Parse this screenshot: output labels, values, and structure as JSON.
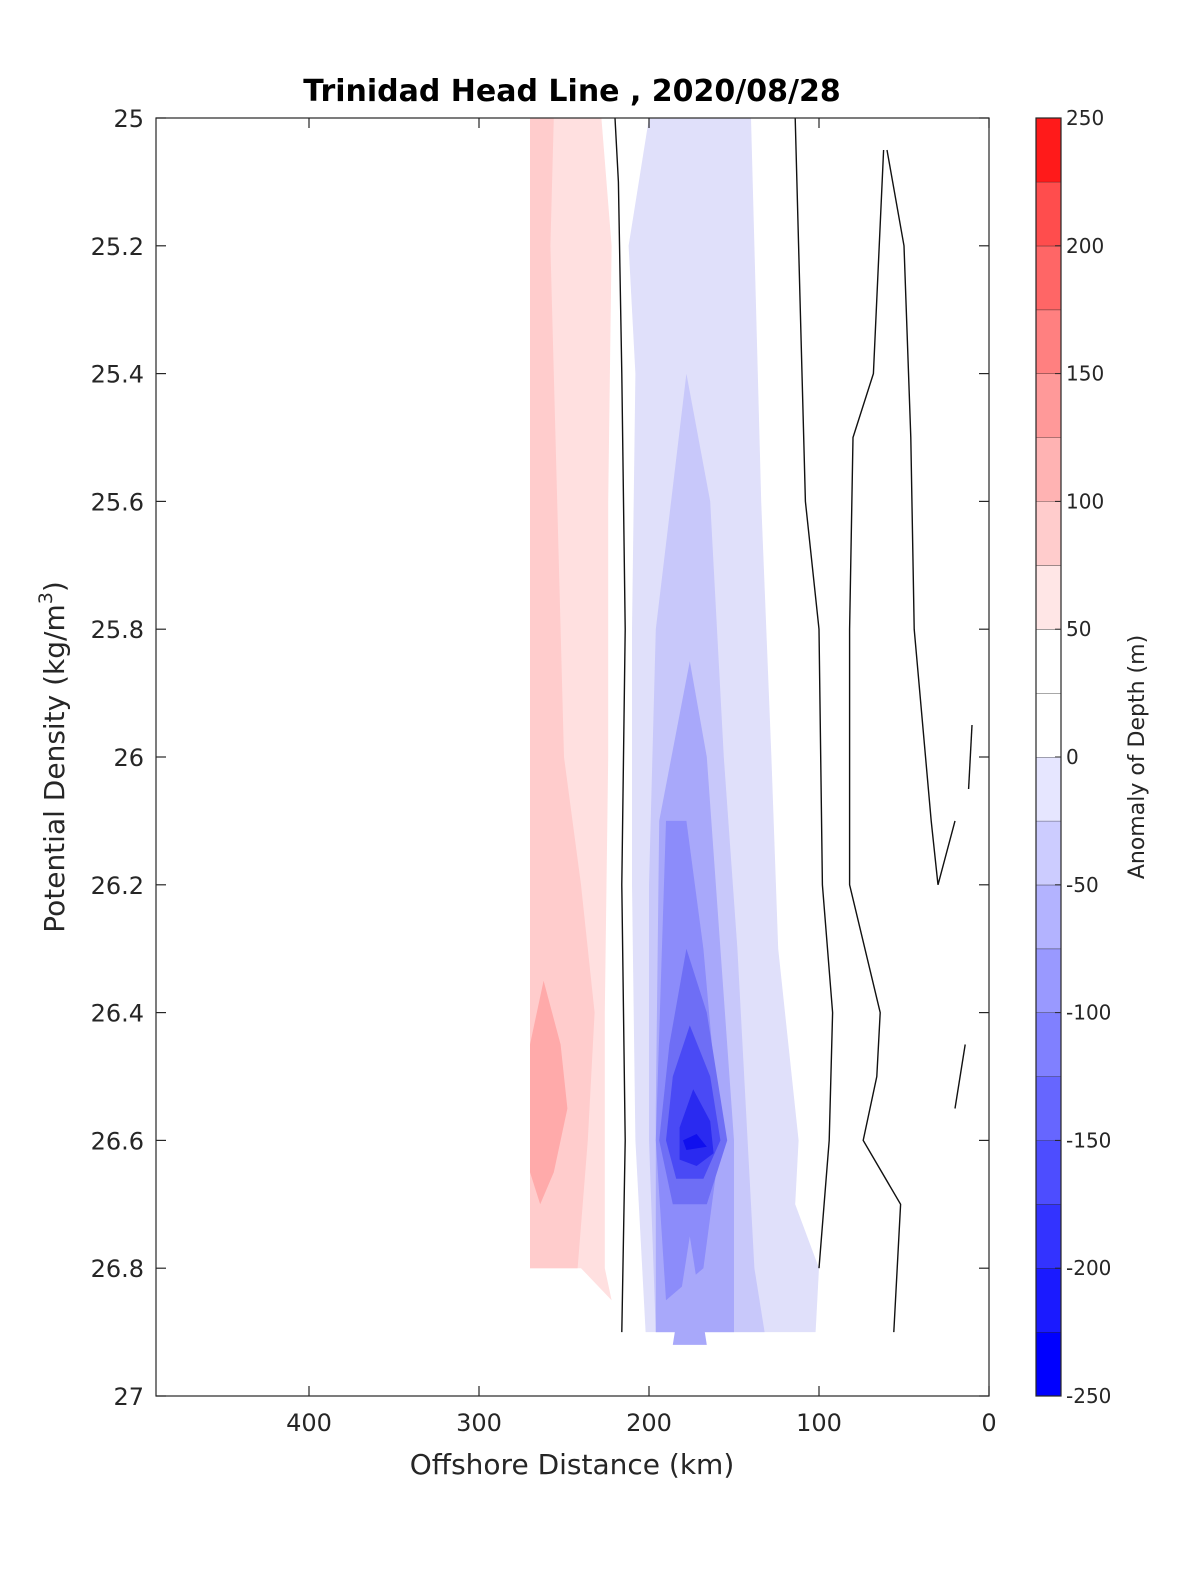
{
  "chart_data": {
    "type": "contour",
    "title": "Trinidad Head Line , 2020/08/28",
    "xlabel": "Offshore Distance (km)",
    "ylabel_main": "Potential Density (kg/m",
    "ylabel_sup": "3",
    "ylabel_close": ")",
    "xlim": [
      490,
      0
    ],
    "ylim": [
      25,
      27
    ],
    "y_reversed": true,
    "x_reversed": true,
    "xticks": [
      400,
      300,
      200,
      100,
      0
    ],
    "yticks": [
      25,
      25.2,
      25.4,
      25.6,
      25.8,
      26,
      26.2,
      26.4,
      26.6,
      26.8,
      27
    ],
    "colorbar": {
      "label": "Anomaly of Depth (m)",
      "limits": [
        -250,
        250
      ],
      "ticks": [
        250,
        200,
        150,
        100,
        50,
        0,
        -50,
        -100,
        -150,
        -200,
        -250
      ],
      "levels": [
        {
          "from": -250,
          "to": -225,
          "color": "#0000ff"
        },
        {
          "from": -225,
          "to": -200,
          "color": "#1a1aff"
        },
        {
          "from": -200,
          "to": -175,
          "color": "#3333ff"
        },
        {
          "from": -175,
          "to": -150,
          "color": "#4d4dff"
        },
        {
          "from": -150,
          "to": -125,
          "color": "#6666ff"
        },
        {
          "from": -125,
          "to": -100,
          "color": "#8080ff"
        },
        {
          "from": -100,
          "to": -75,
          "color": "#9999ff"
        },
        {
          "from": -75,
          "to": -50,
          "color": "#b3b3ff"
        },
        {
          "from": -50,
          "to": -25,
          "color": "#ccccff"
        },
        {
          "from": -25,
          "to": 0,
          "color": "#e6e6ff"
        },
        {
          "from": 0,
          "to": 25,
          "color": "#ffffff"
        },
        {
          "from": 25,
          "to": 50,
          "color": "#ffffff"
        },
        {
          "from": 50,
          "to": 75,
          "color": "#ffe6e6"
        },
        {
          "from": 75,
          "to": 100,
          "color": "#ffcccc"
        },
        {
          "from": 100,
          "to": 125,
          "color": "#ffb3b3"
        },
        {
          "from": 125,
          "to": 150,
          "color": "#ff9999"
        },
        {
          "from": 150,
          "to": 175,
          "color": "#ff8080"
        },
        {
          "from": 175,
          "to": 200,
          "color": "#ff6666"
        },
        {
          "from": 200,
          "to": 225,
          "color": "#ff4d4d"
        },
        {
          "from": 225,
          "to": 250,
          "color": "#ff1a1a"
        }
      ]
    },
    "filled_regions": [
      {
        "level": 50,
        "color": "#ffe0e0",
        "points": [
          [
            270,
            25
          ],
          [
            228,
            25
          ],
          [
            222,
            25.2
          ],
          [
            224,
            25.6
          ],
          [
            224,
            26.0
          ],
          [
            226,
            26.4
          ],
          [
            226,
            26.8
          ],
          [
            222,
            26.85
          ],
          [
            240,
            26.8
          ],
          [
            270,
            26.8
          ]
        ]
      },
      {
        "level": 75,
        "color": "#ffcccc",
        "points": [
          [
            270,
            25
          ],
          [
            256,
            25
          ],
          [
            258,
            25.2
          ],
          [
            254,
            25.6
          ],
          [
            250,
            26.0
          ],
          [
            240,
            26.2
          ],
          [
            232,
            26.4
          ],
          [
            236,
            26.6
          ],
          [
            242,
            26.8
          ],
          [
            270,
            26.8
          ]
        ]
      },
      {
        "level": 100,
        "color": "#ffaaaa",
        "points": [
          [
            270,
            26.45
          ],
          [
            262,
            26.35
          ],
          [
            252,
            26.45
          ],
          [
            248,
            26.55
          ],
          [
            256,
            26.65
          ],
          [
            264,
            26.7
          ],
          [
            270,
            26.65
          ]
        ]
      },
      {
        "level": -25,
        "color": "#e0e0fa",
        "points": [
          [
            200,
            25
          ],
          [
            140,
            25
          ],
          [
            138,
            25.2
          ],
          [
            134,
            25.6
          ],
          [
            128,
            26.0
          ],
          [
            124,
            26.3
          ],
          [
            112,
            26.6
          ],
          [
            114,
            26.7
          ],
          [
            100,
            26.8
          ],
          [
            102,
            26.9
          ],
          [
            202,
            26.9
          ],
          [
            208,
            26.6
          ],
          [
            210,
            26.2
          ],
          [
            210,
            25.8
          ],
          [
            208,
            25.4
          ],
          [
            212,
            25.2
          ]
        ]
      },
      {
        "level": -50,
        "color": "#c8c8fa",
        "points": [
          [
            196,
            25.8
          ],
          [
            178,
            25.4
          ],
          [
            164,
            25.6
          ],
          [
            156,
            26.0
          ],
          [
            148,
            26.3
          ],
          [
            142,
            26.6
          ],
          [
            138,
            26.8
          ],
          [
            132,
            26.9
          ],
          [
            196,
            26.9
          ],
          [
            200,
            26.6
          ],
          [
            200,
            26.2
          ]
        ]
      },
      {
        "level": -75,
        "color": "#a8a8fa",
        "points": [
          [
            194,
            26.1
          ],
          [
            176,
            25.85
          ],
          [
            166,
            26.0
          ],
          [
            158,
            26.3
          ],
          [
            150,
            26.6
          ],
          [
            150,
            26.9
          ],
          [
            196,
            26.9
          ],
          [
            196,
            26.55
          ]
        ]
      },
      {
        "level": -100,
        "color": "#8c8cfa",
        "points": [
          [
            190,
            26.1
          ],
          [
            178,
            26.1
          ],
          [
            168,
            26.3
          ],
          [
            158,
            26.6
          ],
          [
            168,
            26.8
          ],
          [
            190,
            26.85
          ],
          [
            196,
            26.6
          ]
        ]
      },
      {
        "level": -125,
        "color": "#6e6ef5",
        "points": [
          [
            188,
            26.45
          ],
          [
            178,
            26.3
          ],
          [
            166,
            26.4
          ],
          [
            154,
            26.6
          ],
          [
            166,
            26.7
          ],
          [
            186,
            26.7
          ],
          [
            194,
            26.6
          ]
        ]
      },
      {
        "level": -150,
        "color": "#4a4af5",
        "points": [
          [
            186,
            26.5
          ],
          [
            176,
            26.42
          ],
          [
            164,
            26.5
          ],
          [
            158,
            26.6
          ],
          [
            168,
            26.66
          ],
          [
            184,
            26.66
          ],
          [
            190,
            26.6
          ]
        ]
      },
      {
        "level": -175,
        "color": "#2a2af0",
        "points": [
          [
            182,
            26.58
          ],
          [
            174,
            26.52
          ],
          [
            164,
            26.57
          ],
          [
            162,
            26.62
          ],
          [
            172,
            26.64
          ],
          [
            182,
            26.63
          ]
        ]
      },
      {
        "level": -200,
        "color": "#1010ee",
        "points": [
          [
            180,
            26.6
          ],
          [
            172,
            26.59
          ],
          [
            166,
            26.61
          ],
          [
            178,
            26.615
          ]
        ]
      },
      {
        "level": -75,
        "color": "#a8a8fa",
        "points": [
          [
            186,
            26.92
          ],
          [
            176,
            26.75
          ],
          [
            166,
            26.92
          ]
        ]
      }
    ],
    "contour_lines": [
      [
        [
          220,
          25
        ],
        [
          218,
          25.1
        ],
        [
          216,
          25.4
        ],
        [
          214,
          25.8
        ],
        [
          216,
          26.2
        ],
        [
          214,
          26.6
        ],
        [
          216,
          26.9
        ]
      ],
      [
        [
          114,
          25
        ],
        [
          112,
          25.2
        ],
        [
          108,
          25.6
        ],
        [
          100,
          25.8
        ],
        [
          98,
          26.2
        ],
        [
          92,
          26.4
        ],
        [
          94,
          26.6
        ],
        [
          100,
          26.8
        ]
      ],
      [
        [
          60,
          25.05
        ],
        [
          50,
          25.2
        ],
        [
          46,
          25.5
        ],
        [
          44,
          25.8
        ],
        [
          34,
          26.1
        ],
        [
          30,
          26.2
        ],
        [
          20,
          26.1
        ]
      ],
      [
        [
          62,
          25.05
        ],
        [
          68,
          25.4
        ],
        [
          80,
          25.5
        ],
        [
          82,
          25.8
        ],
        [
          82,
          26.2
        ],
        [
          64,
          26.4
        ],
        [
          66,
          26.5
        ],
        [
          74,
          26.6
        ],
        [
          52,
          26.7
        ],
        [
          56,
          26.9
        ]
      ],
      [
        [
          20,
          26.55
        ],
        [
          14,
          26.45
        ]
      ],
      [
        [
          12,
          26.05
        ],
        [
          10,
          25.95
        ]
      ]
    ]
  }
}
